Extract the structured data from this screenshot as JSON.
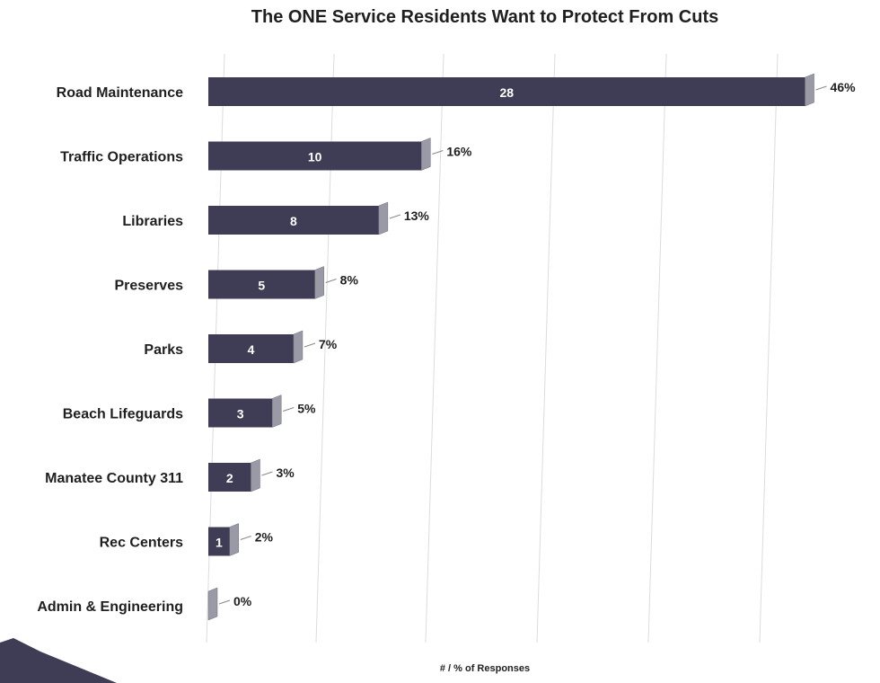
{
  "chart_data": {
    "type": "bar",
    "orientation": "horizontal",
    "title": "The ONE Service Residents Want to Protect From Cuts",
    "xlabel": "# / % of Responses",
    "ylabel": "",
    "categories": [
      "Road Maintenance",
      "Traffic Operations",
      "Libraries",
      "Preserves",
      "Parks",
      "Beach Lifeguards",
      "Manatee County 311",
      "Rec Centers",
      "Admin & Engineering"
    ],
    "series": [
      {
        "values": [
          28,
          10,
          8,
          5,
          4,
          3,
          2,
          1,
          0
        ]
      }
    ],
    "percent_labels": [
      "46%",
      "16%",
      "13%",
      "8%",
      "7%",
      "5%",
      "3%",
      "2%",
      "0%"
    ],
    "xlim": [
      0,
      30
    ],
    "grid": true,
    "legend": "none"
  },
  "colors": {
    "bar": "#3f3d56",
    "bar_side": "#9a9aa6",
    "grid": "#dcdcdc",
    "corner": "#3f3d56"
  }
}
